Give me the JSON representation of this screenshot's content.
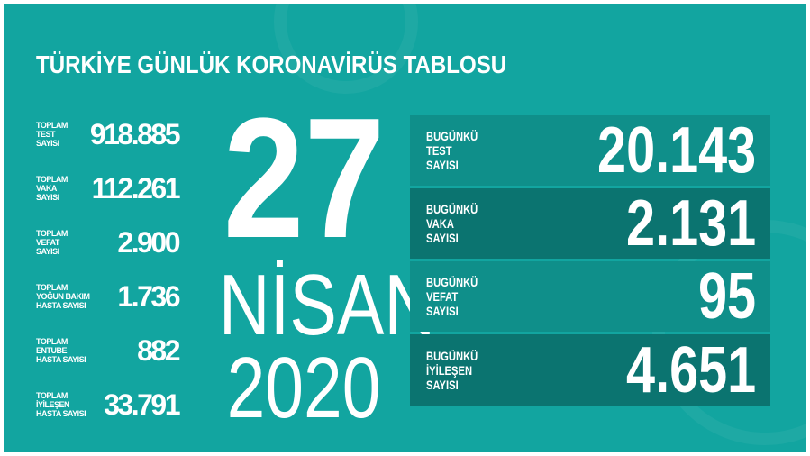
{
  "title": "TÜRKİYE GÜNLÜK KORONAVİRÜS TABLOSU",
  "date": {
    "day": "27",
    "month": "NİSAN",
    "year": "2020"
  },
  "totals": [
    {
      "label": "TOPLAM\nTEST\nSAYISI",
      "value": "918.885"
    },
    {
      "label": "TOPLAM\nVAKA\nSAYISI",
      "value": "112.261"
    },
    {
      "label": "TOPLAM\nVEFAT\nSAYISI",
      "value": "2.900"
    },
    {
      "label": "TOPLAM\nYOĞUN BAKIM\nHASTA SAYISI",
      "value": "1.736"
    },
    {
      "label": "TOPLAM\nENTUBE\nHASTA SAYISI",
      "value": "882"
    },
    {
      "label": "TOPLAM\nİYİLEŞEN\nHASTA SAYISI",
      "value": "33.791"
    }
  ],
  "today": [
    {
      "label": "BUGÜNKÜ\nTEST\nSAYISI",
      "value": "20.143"
    },
    {
      "label": "BUGÜNKÜ\nVAKA\nSAYISI",
      "value": "2.131"
    },
    {
      "label": "BUGÜNKÜ\nVEFAT\nSAYISI",
      "value": "95"
    },
    {
      "label": "BUGÜNKÜ\nİYİLEŞEN\nSAYISI",
      "value": "4.651"
    }
  ],
  "colors": {
    "background": "#12a5a0",
    "panel_light": "#0f8f8a",
    "panel_dark": "#0b7470",
    "text": "#ffffff"
  }
}
